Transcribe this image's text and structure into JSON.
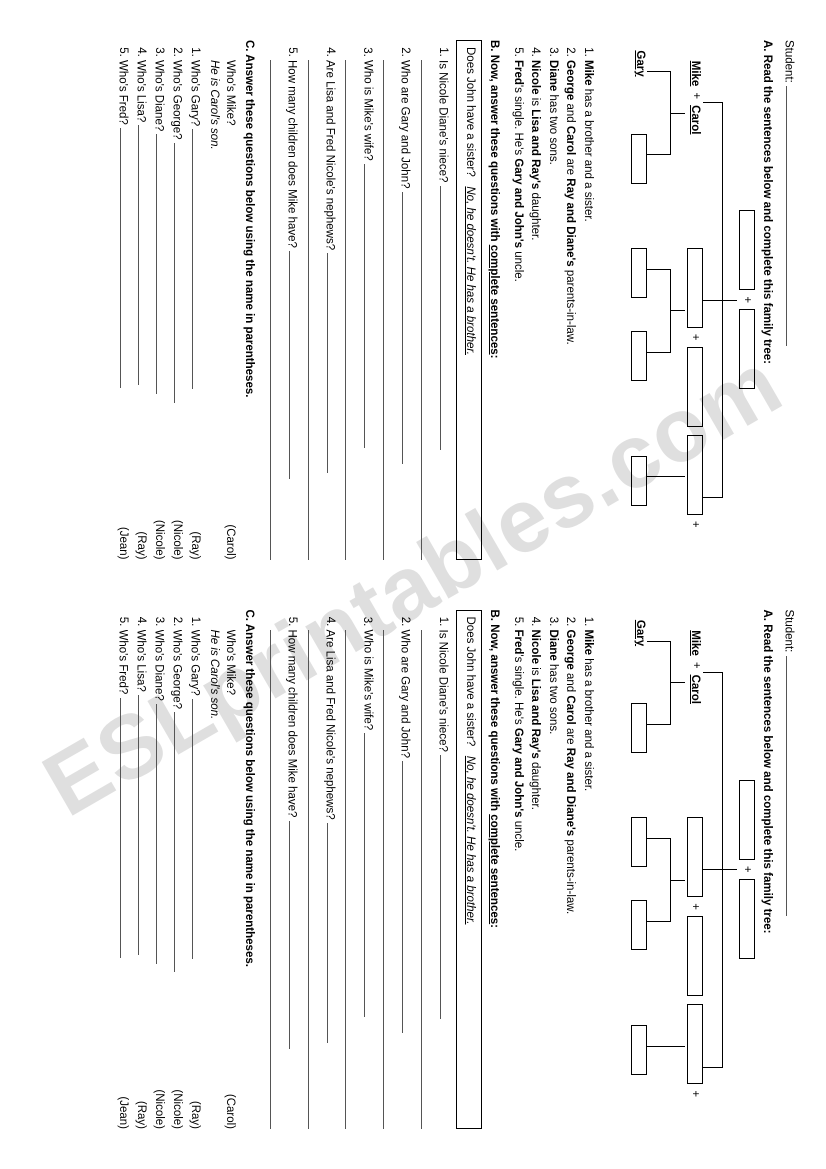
{
  "watermark": "ESLprintables.com",
  "student_label": "Student:",
  "sectionA": "A. Read the sentences below and complete this family tree:",
  "tree": {
    "mike": "Mike",
    "carol": "Carol",
    "gary": "Gary"
  },
  "sentences": {
    "s1a": "Mike",
    "s1b": " has a brother and a sister.",
    "s2a": "George",
    "s2b": " and ",
    "s2c": "Carol",
    "s2d": " are ",
    "s2e": "Ray and Diane's",
    "s2f": " parents-in-law.",
    "s3a": "Diane",
    "s3b": " has two sons.",
    "s4a": "Nicole",
    "s4b": " is ",
    "s4c": "Lisa and Ray's",
    "s4d": " daughter.",
    "s5a": "Fred",
    "s5b": "'s single. He's ",
    "s5c": "Gary and John's",
    "s5d": " uncle."
  },
  "sectionB_a": "B. Now, answer these questions with ",
  "sectionB_b": "complete sentences",
  "sectionB_c": ":",
  "exampleQ": "Does John have a sister?",
  "exampleA": "No, he doesn't. He has a brother.",
  "bq": [
    "Is Nicole Diane's niece?",
    "Who are Gary and John?",
    "Who is Mike's wife?",
    "Are Lisa and Fred Nicole's nephews?",
    "How many children does Mike have?"
  ],
  "sectionC": "C. Answer these questions below using the name in parentheses.",
  "cExampleQ": "Who's Mike?",
  "cExampleP": "(Carol)",
  "cExampleA": "He is Carol's son.",
  "cq": [
    {
      "q": "Who's Gary?",
      "p": "(Ray)"
    },
    {
      "q": "Who's George?",
      "p": "(Nicole)"
    },
    {
      "q": "Who's Diane?",
      "p": "(Nicole)"
    },
    {
      "q": "Who's Lisa?",
      "p": "(Ray)"
    },
    {
      "q": "Who's Fred?",
      "p": "(Jean)"
    }
  ]
}
